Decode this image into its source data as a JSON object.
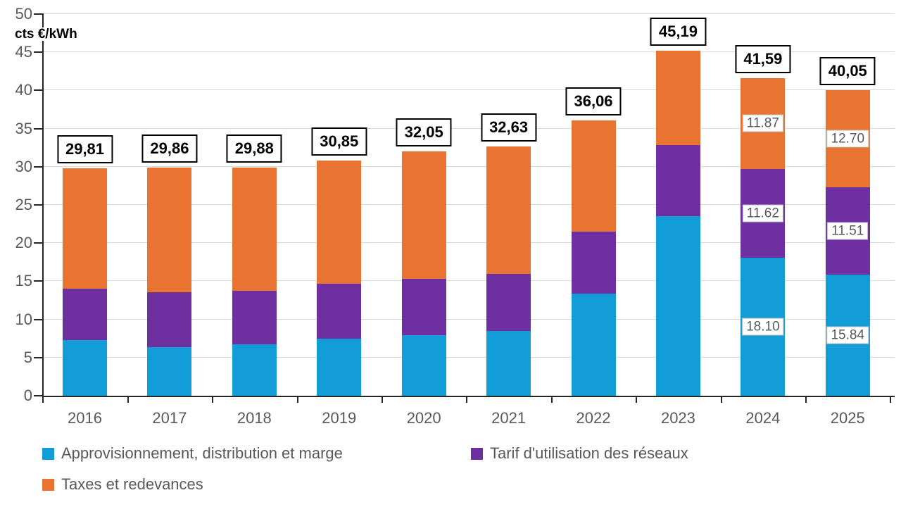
{
  "chart_data": {
    "type": "bar",
    "stacked": true,
    "unit_label": "cts €/kWh",
    "categories": [
      "2016",
      "2017",
      "2018",
      "2019",
      "2020",
      "2021",
      "2022",
      "2023",
      "2024",
      "2025"
    ],
    "series": [
      {
        "name": "Approvisionnement, distribution et marge",
        "color": "#129CD8",
        "values": [
          7.3,
          6.4,
          6.7,
          7.5,
          7.9,
          8.5,
          13.4,
          23.5,
          18.1,
          15.84
        ]
      },
      {
        "name": "Tarif d'utilisation des réseaux",
        "color": "#6E2FA0",
        "values": [
          6.7,
          7.2,
          7.0,
          7.2,
          7.45,
          7.5,
          8.1,
          9.3,
          11.62,
          11.51
        ]
      },
      {
        "name": "Taxes et redevances",
        "color": "#E97331",
        "values": [
          15.81,
          16.26,
          16.18,
          16.15,
          16.7,
          16.63,
          14.56,
          12.39,
          11.87,
          12.7
        ]
      }
    ],
    "totals": [
      "29,81",
      "29,86",
      "29,88",
      "30,85",
      "32,05",
      "32,63",
      "36,06",
      "45,19",
      "41,59",
      "40,05"
    ],
    "segment_labels": [
      {
        "category": "2024",
        "values": [
          "18.10",
          "11.62",
          "11.87"
        ]
      },
      {
        "category": "2025",
        "values": [
          "15.84",
          "11.51",
          "12.70"
        ]
      }
    ],
    "ylim": [
      0,
      50
    ],
    "ytick_step": 5,
    "grid": true,
    "legend_position": "bottom"
  },
  "colors": {
    "blue_series": "#129CD8",
    "purple_series": "#6E2FA0",
    "orange_series": "#E97331",
    "gridline": "#D9D9D9",
    "axis": "#262626",
    "gray_text": "#595959",
    "total_label_border": "#000000",
    "segment_label_border": "#BFBFBF",
    "background": "#FFFFFF"
  }
}
